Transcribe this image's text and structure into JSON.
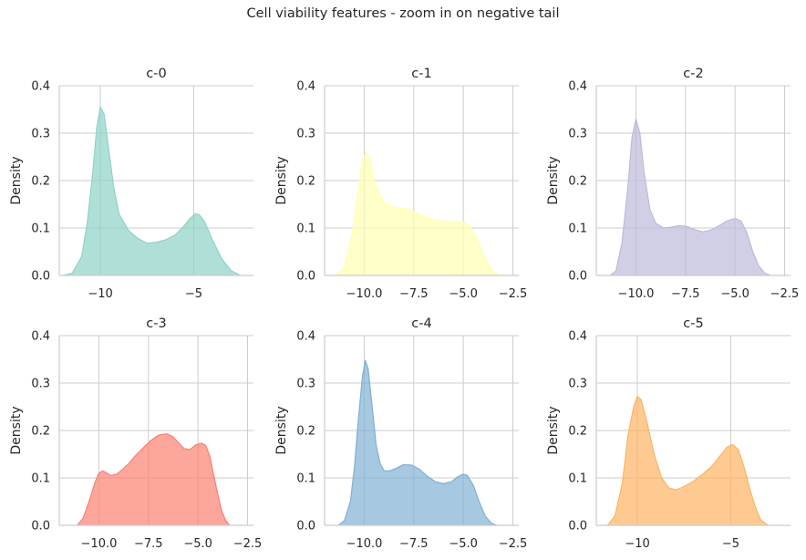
{
  "figure": {
    "title": "Cell viability features - zoom in on negative tail"
  },
  "chart_data": [
    {
      "type": "area",
      "title": "c-0",
      "ylabel": "Density",
      "xlim": [
        -12.2,
        -1.8
      ],
      "ylim": [
        0,
        0.4
      ],
      "xticks": [
        -10,
        -5
      ],
      "xtick_labels": [
        "−10",
        "−5"
      ],
      "yticks": [
        0,
        0.1,
        0.2,
        0.3,
        0.4
      ],
      "ytick_labels": [
        "0.0",
        "0.1",
        "0.2",
        "0.3",
        "0.4"
      ],
      "color": "#8dd3c7",
      "curve": {
        "x": [
          -12.0,
          -11.5,
          -11.0,
          -10.7,
          -10.4,
          -10.2,
          -10.0,
          -9.8,
          -9.6,
          -9.3,
          -9.0,
          -8.5,
          -8.0,
          -7.5,
          -7.0,
          -6.5,
          -6.0,
          -5.5,
          -5.2,
          -4.9,
          -4.7,
          -4.4,
          -4.0,
          -3.5,
          -3.0,
          -2.5
        ],
        "y": [
          0.0,
          0.005,
          0.04,
          0.11,
          0.22,
          0.31,
          0.355,
          0.34,
          0.28,
          0.19,
          0.13,
          0.095,
          0.078,
          0.068,
          0.07,
          0.075,
          0.085,
          0.105,
          0.12,
          0.13,
          0.128,
          0.112,
          0.075,
          0.035,
          0.01,
          0.0
        ]
      },
      "grid": true
    },
    {
      "type": "area",
      "title": "c-1",
      "ylabel": "Density",
      "xlim": [
        -12.0,
        -2.2
      ],
      "ylim": [
        0,
        0.4
      ],
      "xticks": [
        -10,
        -7.5,
        -5,
        -2.5
      ],
      "xtick_labels": [
        "−10.0",
        "−7.5",
        "−5.0",
        "−2.5"
      ],
      "yticks": [
        0,
        0.1,
        0.2,
        0.3,
        0.4
      ],
      "ytick_labels": [
        "0.0",
        "0.1",
        "0.2",
        "0.3",
        "0.4"
      ],
      "color": "#ffffb3",
      "curve": {
        "x": [
          -11.4,
          -11.0,
          -10.6,
          -10.3,
          -10.1,
          -9.9,
          -9.7,
          -9.5,
          -9.2,
          -9.0,
          -8.6,
          -8.2,
          -7.8,
          -7.4,
          -7.0,
          -6.5,
          -6.0,
          -5.5,
          -5.0,
          -4.7,
          -4.4,
          -4.1,
          -3.8,
          -3.5,
          -3.2
        ],
        "y": [
          0.0,
          0.02,
          0.09,
          0.18,
          0.24,
          0.26,
          0.245,
          0.2,
          0.17,
          0.155,
          0.145,
          0.142,
          0.14,
          0.133,
          0.125,
          0.118,
          0.115,
          0.113,
          0.113,
          0.105,
          0.085,
          0.055,
          0.028,
          0.01,
          0.0
        ]
      },
      "grid": true
    },
    {
      "type": "area",
      "title": "c-2",
      "ylabel": "Density",
      "xlim": [
        -12.0,
        -2.2
      ],
      "ylim": [
        0,
        0.4
      ],
      "xticks": [
        -10,
        -7.5,
        -5,
        -2.5
      ],
      "xtick_labels": [
        "−10.0",
        "−7.5",
        "−5.0",
        "−2.5"
      ],
      "yticks": [
        0,
        0.1,
        0.2,
        0.3,
        0.4
      ],
      "ytick_labels": [
        "0.0",
        "0.1",
        "0.2",
        "0.3",
        "0.4"
      ],
      "color": "#bebada",
      "curve": {
        "x": [
          -11.3,
          -11.0,
          -10.7,
          -10.4,
          -10.2,
          -10.0,
          -9.8,
          -9.6,
          -9.3,
          -9.0,
          -8.6,
          -8.2,
          -7.8,
          -7.4,
          -7.0,
          -6.6,
          -6.2,
          -5.8,
          -5.4,
          -5.0,
          -4.7,
          -4.4,
          -4.1,
          -3.8,
          -3.5,
          -3.2
        ],
        "y": [
          0.0,
          0.01,
          0.07,
          0.19,
          0.29,
          0.33,
          0.3,
          0.22,
          0.14,
          0.11,
          0.1,
          0.102,
          0.105,
          0.103,
          0.096,
          0.092,
          0.096,
          0.105,
          0.115,
          0.12,
          0.115,
          0.09,
          0.05,
          0.02,
          0.005,
          0.0
        ]
      },
      "grid": true
    },
    {
      "type": "area",
      "title": "c-3",
      "ylabel": "Density",
      "xlim": [
        -12.0,
        -2.2
      ],
      "ylim": [
        0,
        0.4
      ],
      "xticks": [
        -10,
        -7.5,
        -5,
        -2.5
      ],
      "xtick_labels": [
        "−10.0",
        "−7.5",
        "−5.0",
        "−2.5"
      ],
      "yticks": [
        0,
        0.1,
        0.2,
        0.3,
        0.4
      ],
      "ytick_labels": [
        "0.0",
        "0.1",
        "0.2",
        "0.3",
        "0.4"
      ],
      "color": "#fb8072",
      "curve": {
        "x": [
          -11.1,
          -10.8,
          -10.5,
          -10.2,
          -10.0,
          -9.8,
          -9.6,
          -9.4,
          -9.1,
          -8.8,
          -8.5,
          -8.2,
          -7.8,
          -7.4,
          -7.0,
          -6.6,
          -6.3,
          -6.0,
          -5.7,
          -5.4,
          -5.1,
          -4.8,
          -4.6,
          -4.4,
          -4.2,
          -4.0,
          -3.8,
          -3.6,
          -3.4
        ],
        "y": [
          0.0,
          0.015,
          0.05,
          0.09,
          0.11,
          0.115,
          0.11,
          0.105,
          0.108,
          0.118,
          0.13,
          0.145,
          0.162,
          0.178,
          0.19,
          0.193,
          0.188,
          0.175,
          0.162,
          0.16,
          0.17,
          0.173,
          0.168,
          0.145,
          0.105,
          0.065,
          0.03,
          0.01,
          0.0
        ]
      },
      "grid": true
    },
    {
      "type": "area",
      "title": "c-4",
      "ylabel": "Density",
      "xlim": [
        -12.0,
        -2.2
      ],
      "ylim": [
        0,
        0.4
      ],
      "xticks": [
        -10,
        -7.5,
        -5,
        -2.5
      ],
      "xtick_labels": [
        "−10.0",
        "−7.5",
        "−5.0",
        "−2.5"
      ],
      "yticks": [
        0,
        0.1,
        0.2,
        0.3,
        0.4
      ],
      "ytick_labels": [
        "0.0",
        "0.1",
        "0.2",
        "0.3",
        "0.4"
      ],
      "color": "#80b1d3",
      "curve": {
        "x": [
          -11.3,
          -11.0,
          -10.7,
          -10.5,
          -10.3,
          -10.1,
          -9.95,
          -9.8,
          -9.6,
          -9.4,
          -9.2,
          -9.0,
          -8.7,
          -8.4,
          -8.0,
          -7.6,
          -7.2,
          -6.8,
          -6.4,
          -6.0,
          -5.6,
          -5.3,
          -5.0,
          -4.8,
          -4.5,
          -4.2,
          -3.9,
          -3.6,
          -3.3
        ],
        "y": [
          0.0,
          0.01,
          0.05,
          0.12,
          0.22,
          0.31,
          0.348,
          0.33,
          0.25,
          0.17,
          0.13,
          0.115,
          0.115,
          0.12,
          0.128,
          0.127,
          0.118,
          0.103,
          0.092,
          0.088,
          0.092,
          0.102,
          0.108,
          0.105,
          0.085,
          0.05,
          0.02,
          0.005,
          0.0
        ]
      },
      "grid": true
    },
    {
      "type": "area",
      "title": "c-5",
      "ylabel": "Density",
      "xlim": [
        -12.2,
        -1.8
      ],
      "ylim": [
        0,
        0.4
      ],
      "xticks": [
        -10,
        -5
      ],
      "xtick_labels": [
        "−10",
        "−5"
      ],
      "yticks": [
        0,
        0.1,
        0.2,
        0.3,
        0.4
      ],
      "ytick_labels": [
        "0.0",
        "0.1",
        "0.2",
        "0.3",
        "0.4"
      ],
      "color": "#fdb462",
      "curve": {
        "x": [
          -11.6,
          -11.2,
          -10.8,
          -10.5,
          -10.2,
          -10.0,
          -9.8,
          -9.5,
          -9.1,
          -8.7,
          -8.3,
          -7.9,
          -7.5,
          -7.0,
          -6.5,
          -6.0,
          -5.5,
          -5.2,
          -4.9,
          -4.6,
          -4.3,
          -4.0,
          -3.7,
          -3.4,
          -3.0
        ],
        "y": [
          0.0,
          0.02,
          0.09,
          0.19,
          0.25,
          0.272,
          0.265,
          0.22,
          0.15,
          0.1,
          0.078,
          0.075,
          0.082,
          0.093,
          0.108,
          0.125,
          0.15,
          0.165,
          0.17,
          0.16,
          0.125,
          0.08,
          0.04,
          0.012,
          0.0
        ]
      },
      "grid": true
    }
  ]
}
